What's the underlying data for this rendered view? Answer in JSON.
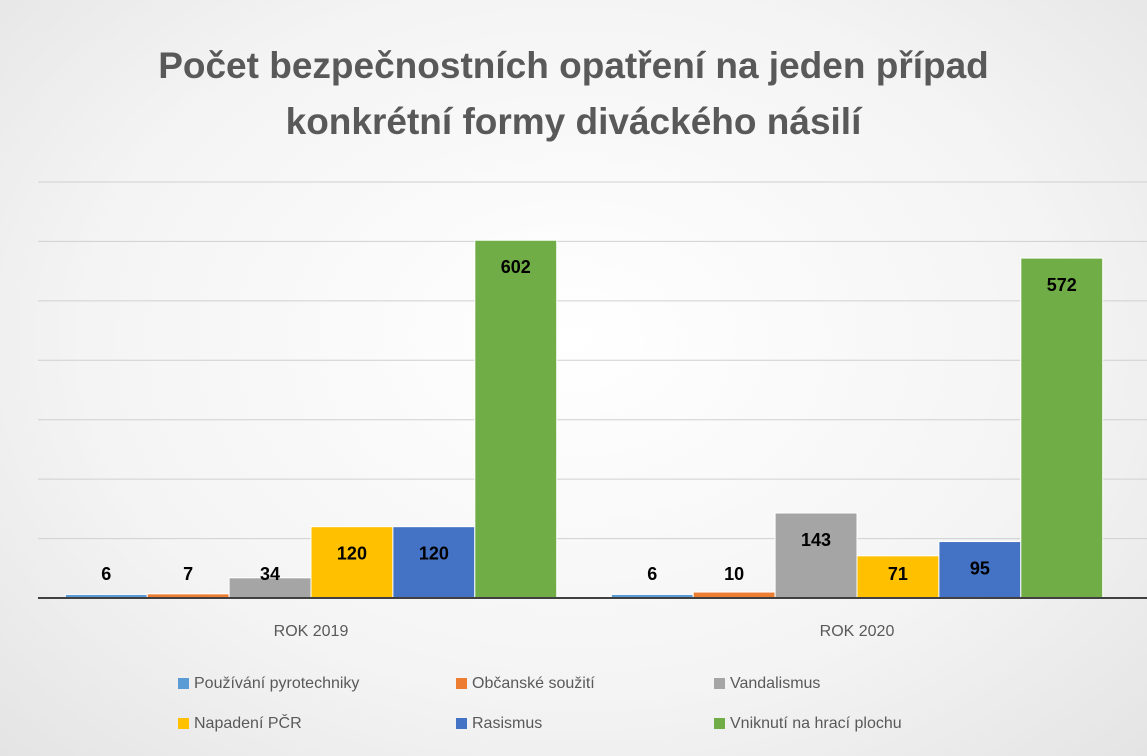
{
  "chart_data": {
    "type": "bar",
    "title": "Počet bezpečnostních opatření na jeden případ konkrétní formy diváckého násilí",
    "categories": [
      "ROK 2019",
      "ROK 2020"
    ],
    "series": [
      {
        "name": "Používání pyrotechniky",
        "color": "#5b9bd5",
        "values": [
          6,
          6
        ]
      },
      {
        "name": "Občanské soužití",
        "color": "#ed7d31",
        "values": [
          7,
          10
        ]
      },
      {
        "name": "Vandalismus",
        "color": "#a5a5a5",
        "values": [
          34,
          143
        ]
      },
      {
        "name": "Napadení PČR",
        "color": "#ffc000",
        "values": [
          120,
          71
        ]
      },
      {
        "name": "Rasismus",
        "color": "#4472c4",
        "values": [
          120,
          95
        ]
      },
      {
        "name": "Vniknutí na hrací plochu",
        "color": "#70ad47",
        "values": [
          602,
          572
        ]
      }
    ],
    "ylim": [
      0,
      700
    ],
    "yticks": [
      0,
      100,
      200,
      300,
      400,
      500,
      600,
      700
    ],
    "grid": true
  }
}
